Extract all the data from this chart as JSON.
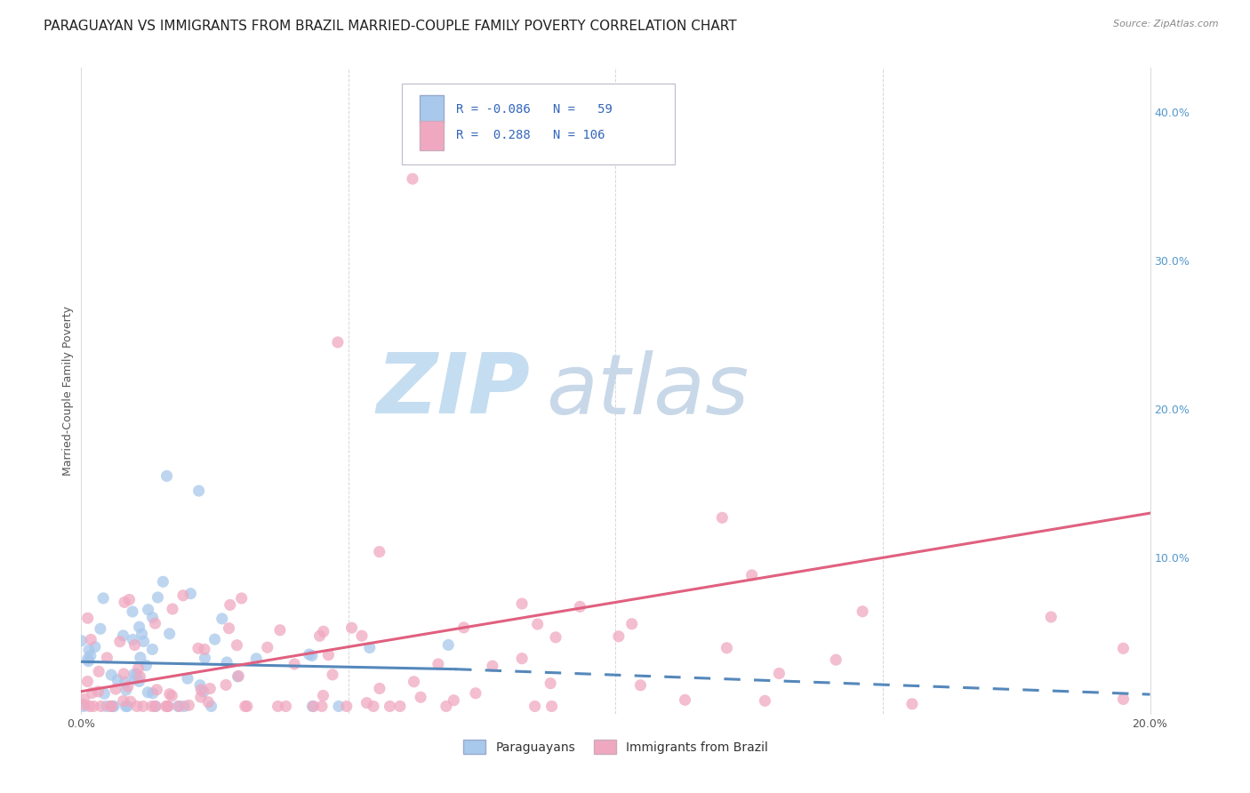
{
  "title": "PARAGUAYAN VS IMMIGRANTS FROM BRAZIL MARRIED-COUPLE FAMILY POVERTY CORRELATION CHART",
  "source": "Source: ZipAtlas.com",
  "ylabel": "Married-Couple Family Poverty",
  "xlabel": "",
  "xlim": [
    0.0,
    0.2
  ],
  "ylim": [
    -0.005,
    0.43
  ],
  "legend_entry1": {
    "color": "#aec6e8",
    "R": "-0.086",
    "N": "59",
    "label": "Paraguayans"
  },
  "legend_entry2": {
    "color": "#f4b8c8",
    "R": "0.288",
    "N": "106",
    "label": "Immigrants from Brazil"
  },
  "scatter_blue_color": "#a8c8ec",
  "scatter_pink_color": "#f0a8c0",
  "line_blue_color": "#5588bb",
  "line_pink_color": "#e06080",
  "watermark_zip": "ZIP",
  "watermark_atlas": "atlas",
  "watermark_zip_color": "#c8dff0",
  "watermark_atlas_color": "#c8d8e8",
  "title_fontsize": 11,
  "axis_label_fontsize": 9,
  "tick_fontsize": 9,
  "legend_fontsize": 10,
  "background_color": "#ffffff",
  "grid_color": "#cccccc"
}
